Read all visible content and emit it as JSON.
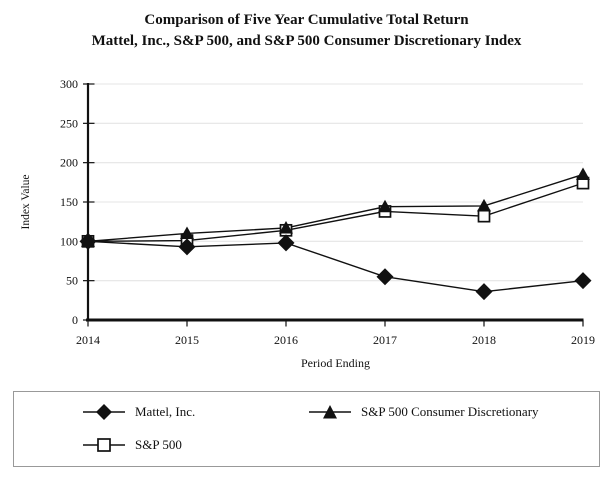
{
  "title": {
    "line1": "Comparison of Five Year Cumulative Total Return",
    "line2": "Mattel, Inc., S&P 500, and S&P 500 Consumer Discretionary Index"
  },
  "chart_data": {
    "type": "line",
    "x": [
      "2014",
      "2015",
      "2016",
      "2017",
      "2018",
      "2019"
    ],
    "series": [
      {
        "name": "Mattel, Inc.",
        "marker": "diamond",
        "values": [
          100,
          93,
          98,
          55,
          36,
          50
        ]
      },
      {
        "name": "S&P 500",
        "marker": "square-open",
        "values": [
          100,
          101,
          114,
          138,
          132,
          174
        ]
      },
      {
        "name": "S&P 500 Consumer Discretionary",
        "marker": "triangle",
        "values": [
          100,
          110,
          117,
          144,
          145,
          185
        ]
      }
    ],
    "xlabel": "Period Ending",
    "ylabel": "Index Value",
    "ylim": [
      0,
      300
    ],
    "ytick_step": 50,
    "grid": true,
    "legend_position": "bottom-box"
  },
  "colors": {
    "line": "#111111",
    "marker_fill": "#111111",
    "marker_open_fill": "#ffffff",
    "grid": "#e4e4e4",
    "axis": "#111111",
    "text": "#111111",
    "legend_border": "#999999",
    "background": "#ffffff"
  }
}
